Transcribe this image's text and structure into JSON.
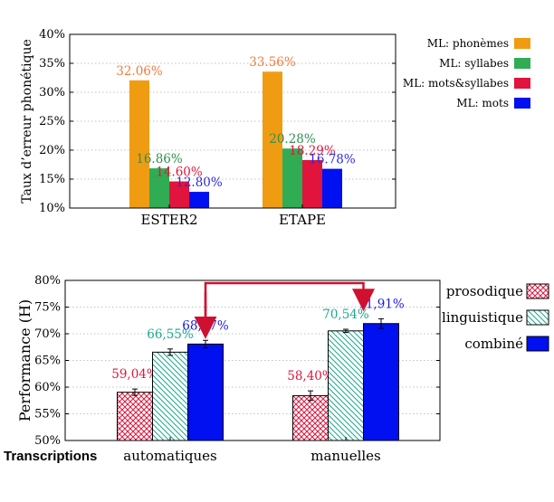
{
  "chart_data": [
    {
      "type": "bar",
      "ylabel": "Taux d’erreur phonétique",
      "ylim": [
        10,
        40
      ],
      "yticks": [
        "10%",
        "15%",
        "20%",
        "25%",
        "30%",
        "35%",
        "40%"
      ],
      "categories": [
        "ESTER2",
        "ETAPE"
      ],
      "grid": true,
      "legend_position": "right",
      "series": [
        {
          "name": "ML: phonèmes",
          "color": "#f09c12",
          "values": [
            32.06,
            33.56
          ],
          "labels": [
            "32.06%",
            "33.56%"
          ],
          "label_color": "#f07a3c"
        },
        {
          "name": "ML: syllabes",
          "color": "#30ac54",
          "values": [
            16.86,
            20.28
          ],
          "labels": [
            "16.86%",
            "20.28%"
          ],
          "label_color": "#2f8f4f"
        },
        {
          "name": "ML: mots&syllabes",
          "color": "#e0143c",
          "values": [
            14.6,
            18.29
          ],
          "labels": [
            "14.60%",
            "18.29%"
          ],
          "label_color": "#e0143c"
        },
        {
          "name": "ML: mots",
          "color": "#0010f0",
          "values": [
            12.8,
            16.78
          ],
          "labels": [
            "12.80%",
            "16.78%"
          ],
          "label_color": "#2a2ae0"
        }
      ]
    },
    {
      "type": "bar",
      "ylabel": "Performance (H)",
      "xlabel": "Transcriptions",
      "ylim": [
        50,
        80
      ],
      "yticks": [
        "50%",
        "55%",
        "60%",
        "65%",
        "70%",
        "75%",
        "80%"
      ],
      "categories": [
        "automatiques",
        "manuelles"
      ],
      "grid": true,
      "legend_position": "right",
      "error_bars": true,
      "series": [
        {
          "name": "prosodique",
          "color": "#e0143c",
          "pattern": "crosshatch",
          "values": [
            59.04,
            58.4
          ],
          "errors": [
            0.6,
            0.9
          ],
          "labels": [
            "59,04%",
            "58,40%"
          ],
          "label_color": "#e0143c"
        },
        {
          "name": "linguistique",
          "color": "#1aa88c",
          "pattern": "diagonal",
          "values": [
            66.55,
            70.54
          ],
          "errors": [
            0.6,
            0.3
          ],
          "labels": [
            "66,55%",
            "70,54%"
          ],
          "label_color": "#1aa88c"
        },
        {
          "name": "combiné",
          "color": "#0010f0",
          "pattern": "solid",
          "values": [
            68.07,
            71.91
          ],
          "errors": [
            0.7,
            0.9
          ],
          "labels": [
            "68,07%",
            "71,91%"
          ],
          "label_color": "#1a1ae0"
        }
      ],
      "annotation": "arrow linking combiné bars of automatiques and manuelles"
    }
  ]
}
